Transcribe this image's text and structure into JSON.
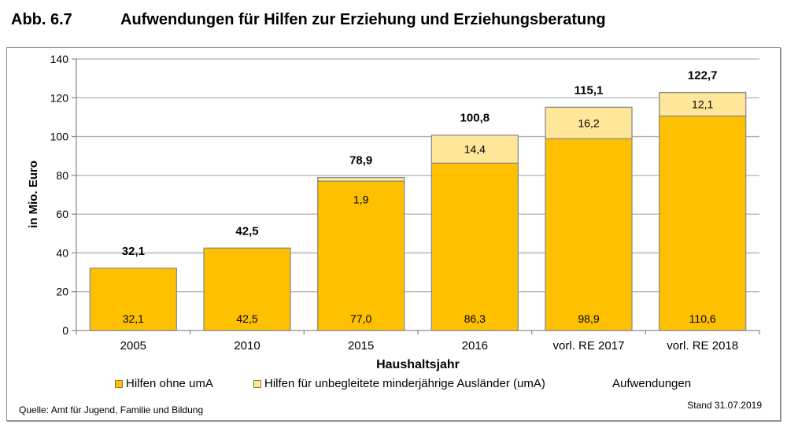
{
  "header": {
    "figure_number": "Abb. 6.7",
    "title": "Aufwendungen für Hilfen zur Erziehung und Erziehungsberatung"
  },
  "footer": {
    "source": "Quelle: Amt für Jugend, Familie und Bildung",
    "stand": "Stand 31.07.2019"
  },
  "colors": {
    "series_main": "#FFC000",
    "series_uma": "#FFE699",
    "bar_border": "#8c8c8c",
    "grid": "#b0b0b0",
    "axis": "#8c8c8c"
  },
  "chart_data": {
    "type": "bar",
    "stacked": true,
    "title": "Aufwendungen für Hilfen zur Erziehung und Erziehungsberatung",
    "xlabel": "Haushaltsjahr",
    "ylabel": "in Mio. Euro",
    "ylim": [
      0,
      140
    ],
    "yticks": [
      0,
      20,
      40,
      60,
      80,
      100,
      120,
      140
    ],
    "ytick_labels": [
      "0",
      "20",
      "40",
      "60",
      "80",
      "100",
      "120",
      "140"
    ],
    "grid": true,
    "legend_position": "bottom",
    "categories": [
      "2005",
      "2010",
      "2015",
      "2016",
      "vorl. RE 2017",
      "vorl. RE 2018"
    ],
    "series": [
      {
        "name": "Hilfen ohne umA",
        "values": [
          32.1,
          42.5,
          77.0,
          86.3,
          98.9,
          110.6
        ],
        "labels": [
          "32,1",
          "42,5",
          "77,0",
          "86,3",
          "98,9",
          "110,6"
        ]
      },
      {
        "name": "Hilfen für unbegleitete minderjährige Ausländer (umA)",
        "values": [
          0,
          0,
          1.9,
          14.4,
          16.2,
          12.1
        ],
        "labels": [
          "",
          "",
          "1,9",
          "14,4",
          "16,2",
          "12,1"
        ]
      },
      {
        "name": "Aufwendungen",
        "values": [
          32.1,
          42.5,
          78.9,
          100.8,
          115.1,
          122.7
        ],
        "labels": [
          "32,1",
          "42,5",
          "78,9",
          "100,8",
          "115,1",
          "122,7"
        ]
      }
    ]
  }
}
